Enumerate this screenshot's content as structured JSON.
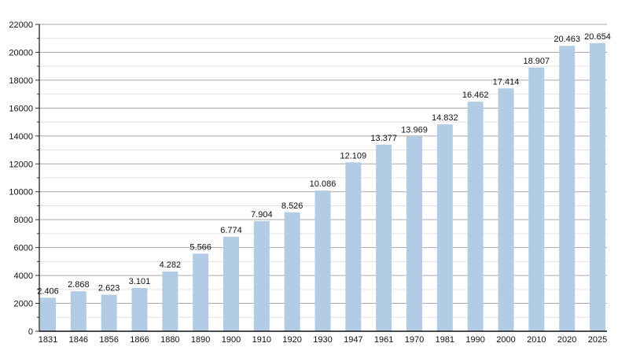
{
  "chart_data": {
    "type": "bar",
    "title": "",
    "xlabel": "",
    "ylabel": "",
    "categories": [
      "1831",
      "1846",
      "1856",
      "1866",
      "1880",
      "1890",
      "1900",
      "1910",
      "1920",
      "1930",
      "1947",
      "1961",
      "1970",
      "1981",
      "1990",
      "2000",
      "2010",
      "2020",
      "2025"
    ],
    "values": [
      2406,
      2868,
      2623,
      3101,
      4282,
      5566,
      6774,
      7904,
      8526,
      10086,
      12109,
      13377,
      13969,
      14832,
      16462,
      17414,
      18907,
      20463,
      20654
    ],
    "value_labels": [
      "2.406",
      "2.868",
      "2.623",
      "3.101",
      "4.282",
      "5.566",
      "6.774",
      "7.904",
      "8.526",
      "10.086",
      "12.109",
      "13.377",
      "13.969",
      "14.832",
      "16.462",
      "17.414",
      "18.907",
      "20.463",
      "20.654"
    ],
    "ylim": [
      0,
      22000
    ],
    "yticks": [
      0,
      2000,
      4000,
      6000,
      8000,
      10000,
      12000,
      14000,
      16000,
      18000,
      20000,
      22000
    ],
    "ytick_labels": [
      "0",
      "2000",
      "4000",
      "6000",
      "8000",
      "10000",
      "12000",
      "14000",
      "16000",
      "18000",
      "20000",
      "22000"
    ],
    "grid": true,
    "legend": "none",
    "bar_color": "#b3cce6"
  }
}
